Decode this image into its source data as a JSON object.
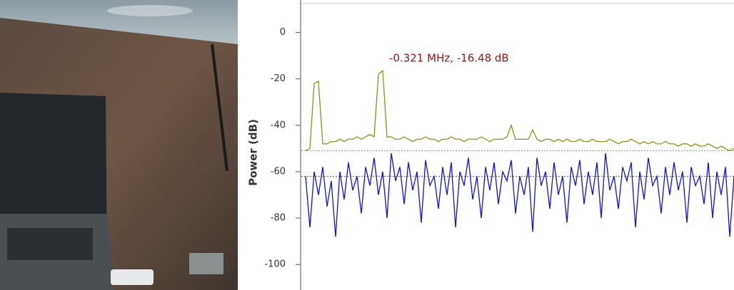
{
  "chart_data": {
    "type": "line",
    "y_label": "Power (dB)",
    "annotation": "-0.321 MHz, -16.48 dB",
    "ylim": [
      -111,
      14
    ],
    "yticks": [
      0,
      -20,
      -40,
      -60,
      -80,
      -100
    ],
    "reference_lines": [
      {
        "value": -51,
        "color": "#33cc33"
      },
      {
        "value": -62,
        "color": "#cc3333"
      }
    ],
    "series": [
      {
        "color": "#8f8f1a",
        "values": [
          -51,
          -50,
          -22,
          -21,
          -48,
          -48,
          -47,
          -47,
          -46,
          -47,
          -46,
          -46,
          -45,
          -46,
          -45,
          -44,
          -45,
          -18,
          -16.48,
          -45,
          -45,
          -46,
          -46,
          -45,
          -46,
          -47,
          -46,
          -46,
          -45,
          -46,
          -46,
          -47,
          -46,
          -46,
          -45,
          -46,
          -46,
          -47,
          -46,
          -46,
          -46,
          -45,
          -46,
          -47,
          -46,
          -46,
          -46,
          -45,
          -40,
          -46,
          -46,
          -46,
          -46,
          -42,
          -46,
          -47,
          -46,
          -46,
          -47,
          -46,
          -47,
          -46,
          -47,
          -47,
          -46,
          -47,
          -47,
          -46,
          -47,
          -47,
          -47,
          -46,
          -47,
          -48,
          -47,
          -47,
          -46,
          -47,
          -48,
          -47,
          -48,
          -47,
          -48,
          -48,
          -47,
          -48,
          -48,
          -49,
          -48,
          -48,
          -49,
          -48,
          -49,
          -49,
          -48,
          -49,
          -50,
          -49,
          -50,
          -51,
          -50
        ]
      },
      {
        "color": "#1010e0",
        "values": [
          -62,
          -84,
          -60,
          -70,
          -58,
          -75,
          -64,
          -88,
          -60,
          -72,
          -56,
          -68,
          -62,
          -78,
          -58,
          -66,
          -54,
          -70,
          -60,
          -80,
          -52,
          -64,
          -58,
          -74,
          -56,
          -68,
          -60,
          -82,
          -55,
          -66,
          -62,
          -76,
          -58,
          -70,
          -56,
          -84,
          -60,
          -66,
          -54,
          -72,
          -62,
          -80,
          -58,
          -68,
          -56,
          -74,
          -60,
          -64,
          -55,
          -78,
          -62,
          -70,
          -58,
          -86,
          -54,
          -66,
          -60,
          -76,
          -56,
          -70,
          -62,
          -82,
          -58,
          -66,
          -55,
          -74,
          -60,
          -70,
          -56,
          -80,
          -52,
          -68,
          -62,
          -76,
          -58,
          -64,
          -56,
          -84,
          -60,
          -72,
          -54,
          -66,
          -62,
          -78,
          -58,
          -70,
          -56,
          -68,
          -60,
          -82,
          -58,
          -66,
          -62,
          -74,
          -56,
          -80,
          -60,
          -70,
          -58,
          -88,
          -62
        ]
      }
    ]
  }
}
